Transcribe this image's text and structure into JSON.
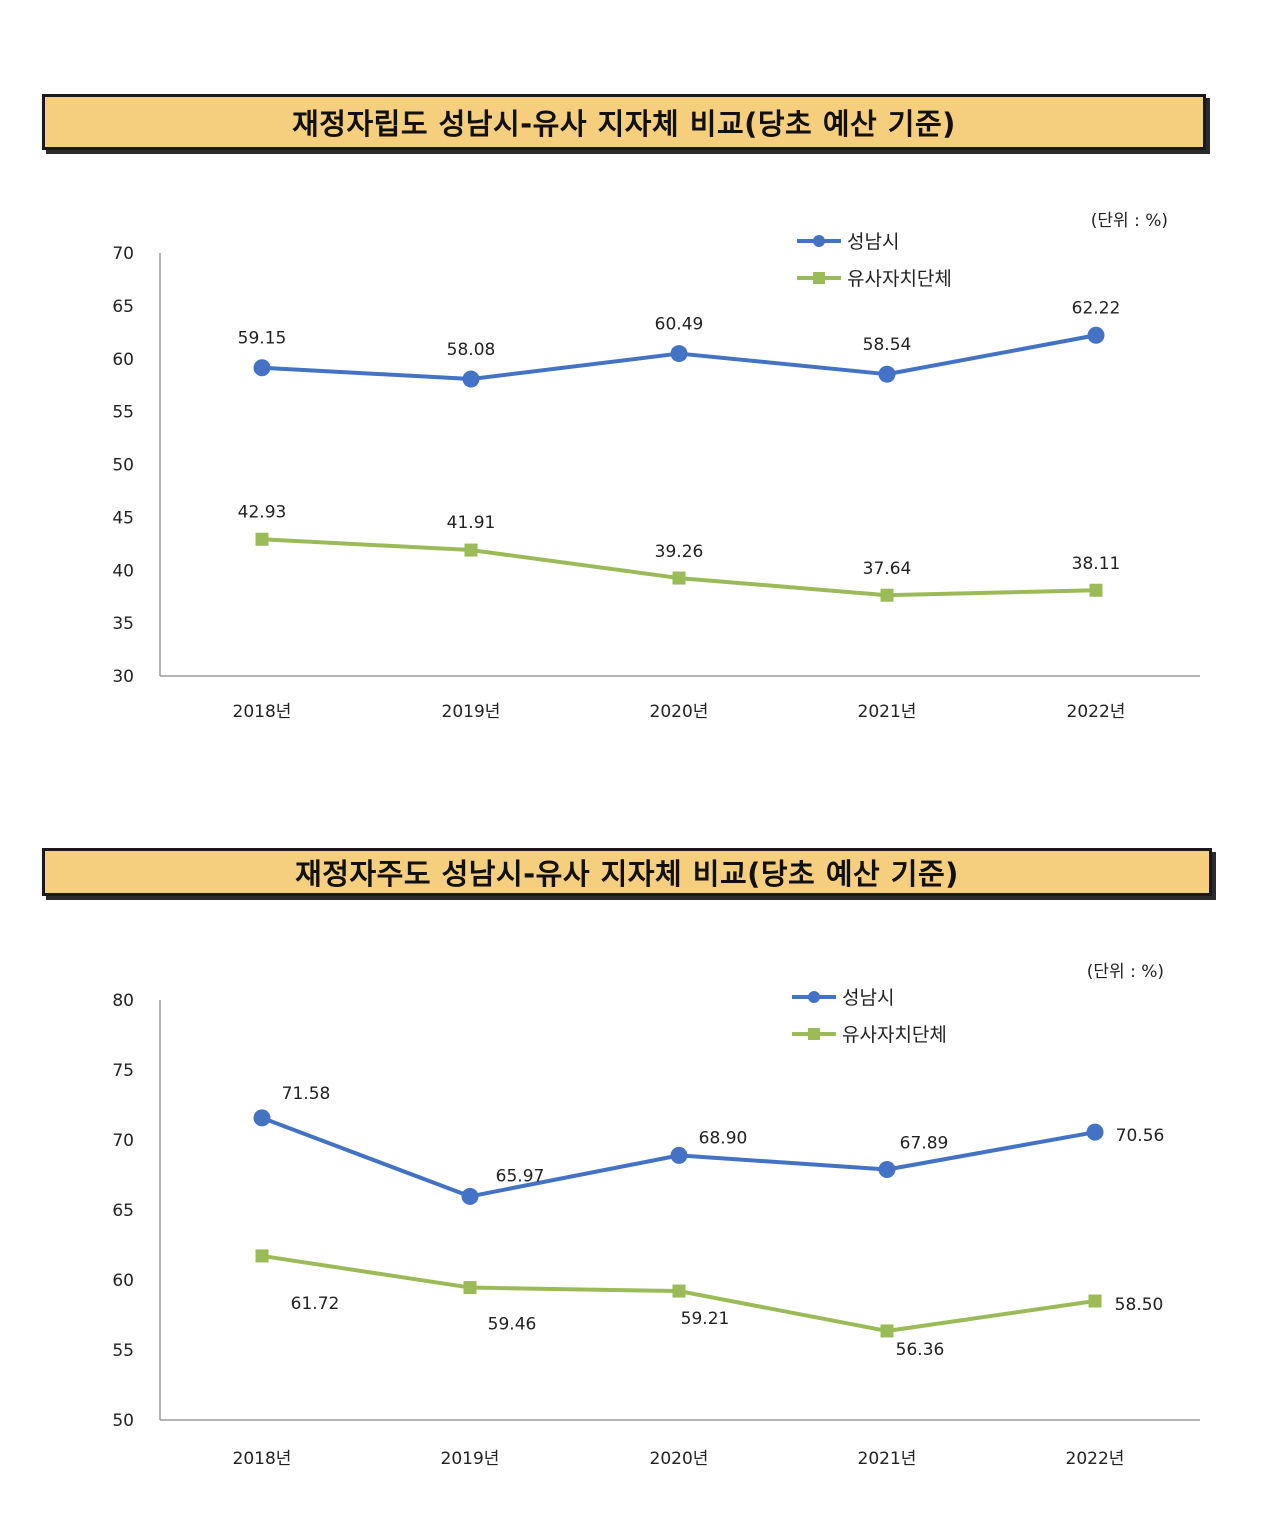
{
  "charts": [
    {
      "title": "재정자립도 성남시-유사 지자체 비교(당초 예산 기준)",
      "unit_label": "(단위 : %)"
    },
    {
      "title": "재정자주도 성남시-유사 지자체 비교(당초 예산 기준)",
      "unit_label": "(단위 : %)"
    }
  ],
  "colors": {
    "seongnam": "#4472C4",
    "similar": "#9BBB59",
    "title_bg": "#F6CF7E"
  },
  "chart_data": [
    {
      "type": "line",
      "title": "재정자립도 성남시-유사 지자체 비교(당초 예산 기준)",
      "unit": "(단위 : %)",
      "categories": [
        "2018년",
        "2019년",
        "2020년",
        "2021년",
        "2022년"
      ],
      "ylim": [
        30,
        70
      ],
      "yticks": [
        30,
        35,
        40,
        45,
        50,
        55,
        60,
        65,
        70
      ],
      "legend_position": "top-right",
      "grid": false,
      "series": [
        {
          "name": "성남시",
          "values": [
            59.15,
            58.08,
            60.49,
            58.54,
            62.22
          ],
          "labels": [
            "59.15",
            "58.08",
            "60.49",
            "58.54",
            "62.22"
          ],
          "marker": "circle"
        },
        {
          "name": "유사자치단체",
          "values": [
            42.93,
            41.91,
            39.26,
            37.64,
            38.11
          ],
          "labels": [
            "42.93",
            "41.91",
            "39.26",
            "37.64",
            "38.11"
          ],
          "marker": "square"
        }
      ]
    },
    {
      "type": "line",
      "title": "재정자주도 성남시-유사 지자체 비교(당초 예산 기준)",
      "unit": "(단위 : %)",
      "categories": [
        "2018년",
        "2019년",
        "2020년",
        "2021년",
        "2022년"
      ],
      "ylim": [
        50,
        80
      ],
      "yticks": [
        50,
        55,
        60,
        65,
        70,
        75,
        80
      ],
      "legend_position": "top-right",
      "grid": false,
      "series": [
        {
          "name": "성남시",
          "values": [
            71.58,
            65.97,
            68.9,
            67.89,
            70.56
          ],
          "labels": [
            "71.58",
            "65.97",
            "68.90",
            "67.89",
            "70.56"
          ],
          "marker": "circle"
        },
        {
          "name": "유사자치단체",
          "values": [
            61.72,
            59.46,
            59.21,
            56.36,
            58.5
          ],
          "labels": [
            "61.72",
            "59.46",
            "59.21",
            "56.36",
            "58.50"
          ],
          "marker": "square"
        }
      ]
    }
  ]
}
